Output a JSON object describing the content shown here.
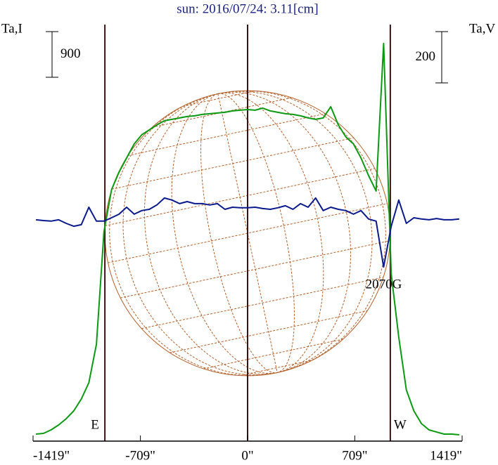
{
  "chart_data": {
    "type": "line",
    "title": "sun: 2016/07/24: 3.11[cm]",
    "y_label": "Ta,I",
    "y2_label": "Ta,V",
    "y_scale_bar": 900,
    "y2_scale_bar": 200,
    "x": [
      -1400,
      -1350,
      -1300,
      -1250,
      -1200,
      -1150,
      -1100,
      -1050,
      -1000,
      -950,
      -900,
      -850,
      -800,
      -750,
      -700,
      -650,
      -600,
      -550,
      -500,
      -450,
      -400,
      -350,
      -300,
      -250,
      -200,
      -150,
      -100,
      -50,
      0,
      50,
      100,
      150,
      200,
      250,
      300,
      350,
      400,
      450,
      500,
      550,
      600,
      650,
      700,
      750,
      800,
      850,
      900,
      950,
      1000,
      1050,
      1100,
      1150,
      1200,
      1250,
      1300,
      1350,
      1400
    ],
    "series": [
      {
        "name": "I",
        "color": "#0b9a12",
        "values": [
          28,
          42,
          111,
          208,
          332,
          485,
          720,
          1039,
          1800,
          4017,
          4848,
          5194,
          5471,
          5748,
          5928,
          6025,
          6122,
          6205,
          6233,
          6260,
          6288,
          6302,
          6330,
          6343,
          6357,
          6371,
          6399,
          6413,
          6426,
          6413,
          6454,
          6399,
          6371,
          6343,
          6330,
          6302,
          6260,
          6233,
          6260,
          6482,
          6122,
          5886,
          5748,
          5471,
          5124,
          4820,
          7728,
          3186,
          1939,
          900,
          485,
          235,
          111,
          69,
          28,
          28,
          14
        ]
      },
      {
        "name": "V",
        "color": "#0a1a8c",
        "axis": "y2",
        "values": [
          0,
          -3,
          -5,
          0,
          -14,
          -25,
          -19,
          49,
          -5,
          -5,
          8,
          22,
          49,
          22,
          36,
          41,
          58,
          85,
          77,
          63,
          71,
          63,
          63,
          58,
          63,
          41,
          49,
          47,
          47,
          49,
          44,
          41,
          47,
          55,
          41,
          63,
          49,
          85,
          36,
          49,
          41,
          36,
          22,
          36,
          3,
          -5,
          -184,
          -25,
          77,
          -14,
          8,
          3,
          0,
          5,
          0,
          0,
          3
        ]
      }
    ],
    "xlim": [
      -1419,
      1419
    ],
    "xticks": [
      {
        "value": -1419,
        "label": "-1419\""
      },
      {
        "value": -709,
        "label": "-709\""
      },
      {
        "value": 0,
        "label": "0\""
      },
      {
        "value": 709,
        "label": "709\""
      },
      {
        "value": 1419,
        "label": "1419\""
      }
    ],
    "ylim": [
      -110,
      8170
    ],
    "y2lim": [
      -863,
      775
    ],
    "markers": [
      {
        "x": -944,
        "label": "E"
      },
      {
        "x": 0
      },
      {
        "x": 944,
        "label": "W"
      }
    ],
    "annotation": {
      "x": 900,
      "y": -184,
      "text": "2070G"
    }
  }
}
